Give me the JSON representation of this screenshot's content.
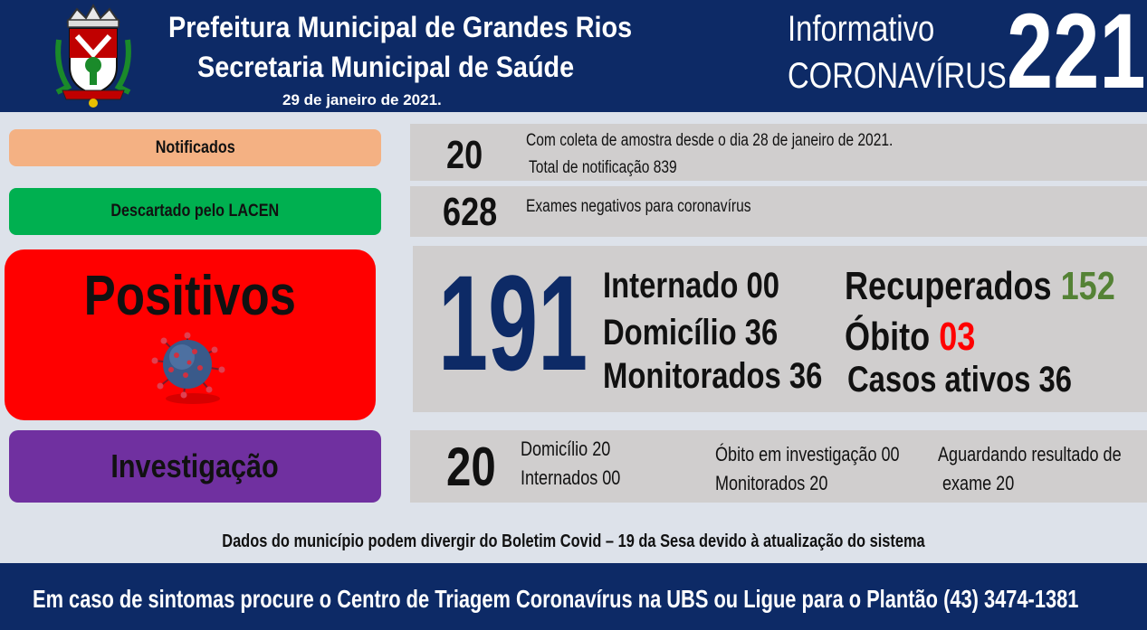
{
  "header": {
    "title_line1": "Prefeitura Municipal de Grandes Rios",
    "title_line2": "Secretaria Municipal de Saúde",
    "date": "29 de janeiro  de 2021.",
    "info_line1": "Informativo",
    "info_line2": "CORONAVÍRUS",
    "bulletin_number": "221"
  },
  "notificados": {
    "label": "Notificados",
    "count": "20",
    "note_line1": "Com coleta de amostra desde o dia 28 de janeiro de 2021.",
    "note_line2": "Total de notificação  839"
  },
  "descartados": {
    "label": "Descartado  pelo LACEN",
    "count": "628",
    "note": "Exames negativos  para coronavírus"
  },
  "positivos": {
    "label": "Positivos",
    "count": "191",
    "internado_label": "Internado",
    "internado_value": "00",
    "domicilio_label": "Domicílio",
    "domicilio_value": "36",
    "monitorados_label": "Monitorados",
    "monitorados_value": "36",
    "recuperados_label": "Recuperados",
    "recuperados_value": "152",
    "obito_label": "Óbito",
    "obito_value": "03",
    "ativos_label": "Casos ativos",
    "ativos_value": "36"
  },
  "investigacao": {
    "label": "Investigação",
    "count": "20",
    "domicilio": "Domicílio 20",
    "internados": "Internados 00",
    "obito": "Óbito  em investigação  00",
    "monitorados": "Monitorados  20",
    "aguardando_line1": "Aguardando resultado de",
    "aguardando_line2": "exame 20"
  },
  "disclaimer": "Dados do município  podem  divergir  do Boletim  Covid – 19 da Sesa devido à atualização  do sistema",
  "footer": "Em caso de sintomas  procure  o Centro de Triagem  Coronavírus  na UBS ou Ligue para o Plantão  (43) 3474-1381",
  "colors": {
    "header_bg": "#0d2a66",
    "notificados": "#f4b183",
    "descartados": "#00b050",
    "positivos": "#ff0000",
    "investigacao": "#7030a0",
    "big_number_blue": "#0d2a66",
    "recuperados_green": "#548235",
    "obito_red": "#ff0000"
  },
  "icons": {
    "crest": "municipal-coat-of-arms",
    "virus": "coronavirus-icon"
  }
}
